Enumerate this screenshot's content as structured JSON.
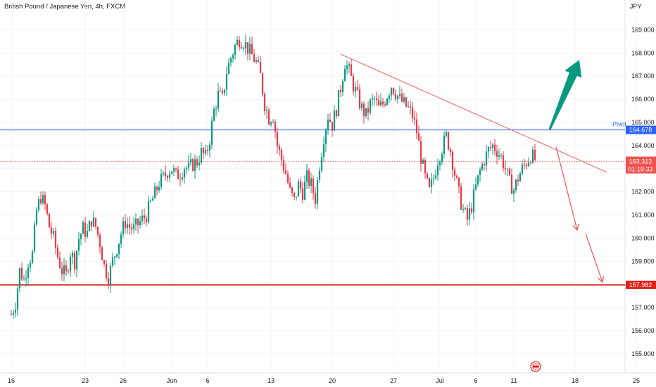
{
  "header": {
    "title": "British Pound / Japanese Yen, 4h, FXCM",
    "currency": "JPY"
  },
  "chart_data": {
    "type": "candlestick",
    "symbol": "British Pound / Japanese Yen",
    "interval": "4h",
    "source": "FXCM",
    "price_axis": {
      "unit": "JPY",
      "ylim": [
        154.5,
        170.3
      ],
      "ticks": [
        "155.000",
        "156.000",
        "157.000",
        "158.000",
        "159.000",
        "160.000",
        "161.000",
        "162.000",
        "163.000",
        "164.000",
        "165.000",
        "166.000",
        "167.000",
        "168.000",
        "169.000"
      ]
    },
    "time_axis": {
      "ticks": [
        {
          "label": "16",
          "slot": 0
        },
        {
          "label": "23",
          "slot": 35
        },
        {
          "label": "26",
          "slot": 53
        },
        {
          "label": "Jun",
          "slot": 76
        },
        {
          "label": "6",
          "slot": 93
        },
        {
          "label": "13",
          "slot": 123
        },
        {
          "label": "20",
          "slot": 152
        },
        {
          "label": "27",
          "slot": 181
        },
        {
          "label": "Jul",
          "slot": 203
        },
        {
          "label": "6",
          "slot": 220
        },
        {
          "label": "11",
          "slot": 238
        },
        {
          "label": "18",
          "slot": 267
        },
        {
          "label": "25",
          "slot": 296
        }
      ]
    },
    "levels": {
      "pivot": {
        "label": "Pivot",
        "value": 164.678,
        "display": "164.678",
        "color": "#2962ff"
      },
      "support": {
        "value": 157.982,
        "display": "157.982",
        "color": "#e0201b"
      },
      "current": {
        "value": 163.312,
        "display": "163.312",
        "countdown": "01:19:33",
        "color": "#ef5350"
      }
    },
    "trendline": {
      "from": {
        "slot": 156,
        "value": 167.95
      },
      "to": {
        "slot": 282,
        "value": 162.85
      },
      "color": "#f06d6b"
    },
    "annotations": [
      {
        "type": "arrow",
        "direction": "up",
        "color": "#089981",
        "from": {
          "slot": 255,
          "value": 164.7
        },
        "to": {
          "slot": 269,
          "value": 167.7
        }
      },
      {
        "type": "arrow",
        "direction": "down",
        "color": "#ef5350",
        "from": {
          "slot": 258,
          "value": 163.95
        },
        "to": {
          "slot": 268,
          "value": 160.35
        }
      },
      {
        "type": "arrow",
        "direction": "down",
        "color": "#ef5350",
        "from": {
          "slot": 272,
          "value": 160.2
        },
        "to": {
          "slot": 280,
          "value": 158.1
        }
      }
    ],
    "candles_close_path": [
      [
        0,
        156.7
      ],
      [
        2,
        157.2
      ],
      [
        4,
        158.6
      ],
      [
        6,
        158.2
      ],
      [
        8,
        159.0
      ],
      [
        10,
        159.3
      ],
      [
        12,
        161.2
      ],
      [
        14,
        161.8
      ],
      [
        16,
        161.4
      ],
      [
        18,
        160.5
      ],
      [
        20,
        160.0
      ],
      [
        22,
        159.2
      ],
      [
        24,
        158.6
      ],
      [
        26,
        158.4
      ],
      [
        28,
        159.4
      ],
      [
        30,
        159.0
      ],
      [
        32,
        160.0
      ],
      [
        34,
        160.4
      ],
      [
        36,
        160.2
      ],
      [
        38,
        160.8
      ],
      [
        40,
        160.5
      ],
      [
        42,
        159.8
      ],
      [
        44,
        158.8
      ],
      [
        46,
        158.3
      ],
      [
        48,
        159.0
      ],
      [
        50,
        159.6
      ],
      [
        52,
        160.2
      ],
      [
        54,
        160.7
      ],
      [
        56,
        160.5
      ],
      [
        58,
        160.4
      ],
      [
        60,
        160.6
      ],
      [
        62,
        160.8
      ],
      [
        64,
        161.0
      ],
      [
        66,
        161.5
      ],
      [
        68,
        161.9
      ],
      [
        70,
        162.4
      ],
      [
        72,
        162.6
      ],
      [
        74,
        162.9
      ],
      [
        76,
        163.0
      ],
      [
        78,
        162.7
      ],
      [
        80,
        162.8
      ],
      [
        82,
        163.1
      ],
      [
        84,
        163.0
      ],
      [
        86,
        163.2
      ],
      [
        88,
        163.3
      ],
      [
        90,
        163.7
      ],
      [
        92,
        163.5
      ],
      [
        94,
        164.3
      ],
      [
        96,
        165.5
      ],
      [
        98,
        166.2
      ],
      [
        100,
        166.0
      ],
      [
        102,
        167.2
      ],
      [
        104,
        167.8
      ],
      [
        106,
        168.3
      ],
      [
        108,
        168.6
      ],
      [
        110,
        168.5
      ],
      [
        112,
        168.2
      ],
      [
        114,
        167.9
      ],
      [
        116,
        167.6
      ],
      [
        118,
        167.0
      ],
      [
        120,
        165.8
      ],
      [
        122,
        165.2
      ],
      [
        124,
        165.3
      ],
      [
        126,
        164.0
      ],
      [
        128,
        163.4
      ],
      [
        130,
        162.8
      ],
      [
        132,
        162.0
      ],
      [
        134,
        161.6
      ],
      [
        136,
        162.3
      ],
      [
        138,
        162.0
      ],
      [
        140,
        162.6
      ],
      [
        142,
        162.3
      ],
      [
        144,
        161.7
      ],
      [
        146,
        163.2
      ],
      [
        148,
        164.4
      ],
      [
        150,
        165.3
      ],
      [
        152,
        164.9
      ],
      [
        154,
        165.6
      ],
      [
        156,
        166.5
      ],
      [
        158,
        167.6
      ],
      [
        160,
        167.2
      ],
      [
        162,
        166.6
      ],
      [
        164,
        166.1
      ],
      [
        166,
        165.6
      ],
      [
        168,
        165.3
      ],
      [
        170,
        165.8
      ],
      [
        172,
        166.0
      ],
      [
        174,
        165.6
      ],
      [
        176,
        165.8
      ],
      [
        178,
        166.2
      ],
      [
        180,
        166.6
      ],
      [
        182,
        166.3
      ],
      [
        184,
        166.0
      ],
      [
        186,
        165.8
      ],
      [
        188,
        165.6
      ],
      [
        190,
        165.3
      ],
      [
        192,
        164.6
      ],
      [
        194,
        163.5
      ],
      [
        196,
        162.6
      ],
      [
        198,
        162.0
      ],
      [
        200,
        162.6
      ],
      [
        202,
        163.4
      ],
      [
        204,
        163.9
      ],
      [
        206,
        164.4
      ],
      [
        208,
        163.8
      ],
      [
        210,
        162.8
      ],
      [
        212,
        161.9
      ],
      [
        214,
        161.2
      ],
      [
        216,
        160.8
      ],
      [
        218,
        161.4
      ],
      [
        220,
        162.2
      ],
      [
        222,
        162.9
      ],
      [
        224,
        163.4
      ],
      [
        226,
        163.8
      ],
      [
        228,
        164.0
      ],
      [
        230,
        163.8
      ],
      [
        232,
        163.5
      ],
      [
        234,
        163.0
      ],
      [
        236,
        162.4
      ],
      [
        238,
        162.1
      ],
      [
        240,
        162.6
      ],
      [
        242,
        163.0
      ],
      [
        244,
        163.3
      ],
      [
        246,
        163.6
      ],
      [
        248,
        163.4
      ]
    ]
  }
}
